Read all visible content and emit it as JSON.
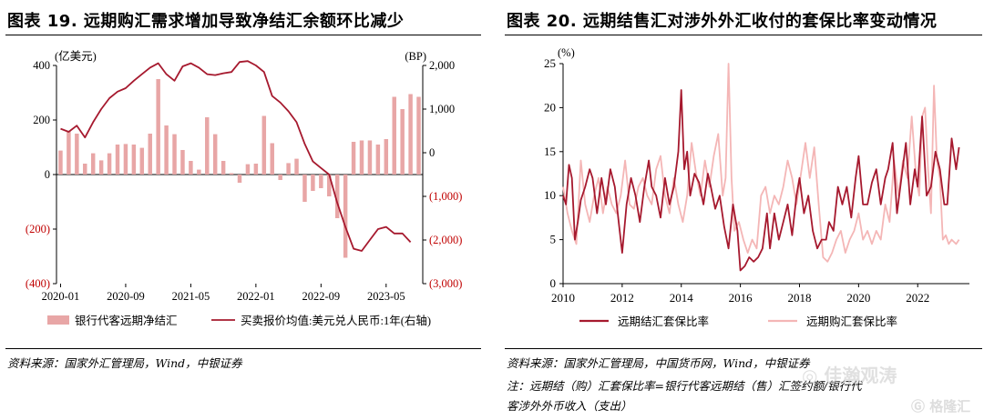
{
  "left": {
    "title": "图表 19. 远期购汇需求增加导致净结汇余额环比减少",
    "source": "资料来源：国家外汇管理局，Wind，中银证券",
    "chart_data": {
      "type": "bar+line",
      "ylabel_left": "(亿美元)",
      "ylabel_right": "(BP)",
      "ylim_left": [
        -400,
        400
      ],
      "ylim_right": [
        -3000,
        2000
      ],
      "yticks_left": [
        "(400)",
        "(200)",
        "0",
        "200",
        "400"
      ],
      "yticks_left_values": [
        -400,
        -200,
        0,
        200,
        400
      ],
      "yticks_right": [
        "(3,000)",
        "(2,000)",
        "(1,000)",
        "0",
        "1,000",
        "2,000"
      ],
      "yticks_right_values": [
        -3000,
        -2000,
        -1000,
        0,
        1000,
        2000
      ],
      "xticks": [
        "2020-01",
        "2020-09",
        "2021-05",
        "2022-01",
        "2022-09",
        "2023-05"
      ],
      "xticks_index": [
        0,
        8,
        16,
        24,
        32,
        40
      ],
      "series": [
        {
          "name": "银行代客远期净结汇",
          "type": "bar",
          "axis": "left",
          "color": "#e8a6a6",
          "values": [
            88,
            160,
            150,
            40,
            78,
            52,
            78,
            110,
            112,
            110,
            98,
            150,
            350,
            180,
            148,
            90,
            50,
            18,
            210,
            148,
            50,
            5,
            -30,
            38,
            40,
            215,
            115,
            -20,
            42,
            58,
            -100,
            -60,
            -50,
            -80,
            -160,
            -305,
            120,
            125,
            125,
            110,
            130,
            285,
            240,
            295,
            285
          ]
        },
        {
          "name": "买卖报价均值:美元兑人民币:1年(右轴)",
          "type": "line",
          "axis": "right",
          "color": "#a6192e",
          "values": [
            550,
            480,
            620,
            350,
            700,
            1000,
            1250,
            1400,
            1480,
            1650,
            1800,
            1950,
            2050,
            1800,
            1650,
            1980,
            2050,
            1950,
            1800,
            1780,
            1820,
            1850,
            2080,
            2100,
            2000,
            1850,
            1300,
            1150,
            950,
            700,
            200,
            -200,
            -350,
            -500,
            -1150,
            -1700,
            -2200,
            -2250,
            -2000,
            -1750,
            -1700,
            -1850,
            -1850,
            -2050
          ]
        }
      ]
    }
  },
  "right": {
    "title": "图表 20. 远期结售汇对涉外外汇收付的套保比率变动情况",
    "source": "资料来源：国家外汇管理局，中国货币网，Wind，中银证券",
    "note": "注：远期结（购）汇套保比率=银行代客远期结（售）汇签约额/银行代客涉外外币收入（支出）",
    "chart_data": {
      "type": "line",
      "ylabel": "(%)",
      "ylim": [
        0,
        25
      ],
      "yticks": [
        "0",
        "5",
        "10",
        "15",
        "20",
        "25"
      ],
      "yticks_values": [
        0,
        5,
        10,
        15,
        20,
        25
      ],
      "xlim": [
        2010,
        2023.75
      ],
      "xticks": [
        "2010",
        "2012",
        "2014",
        "2016",
        "2018",
        "2020",
        "2022"
      ],
      "xticks_values": [
        2010,
        2012,
        2014,
        2016,
        2018,
        2020,
        2022
      ],
      "series": [
        {
          "name": "远期结汇套保比率",
          "color": "#a6192e",
          "x": [
            2010.0,
            2010.1,
            2010.2,
            2010.3,
            2010.4,
            2010.5,
            2010.6,
            2010.75,
            2010.9,
            2011.0,
            2011.15,
            2011.3,
            2011.45,
            2011.6,
            2011.75,
            2011.9,
            2012.0,
            2012.15,
            2012.3,
            2012.45,
            2012.6,
            2012.75,
            2012.9,
            2013.0,
            2013.15,
            2013.3,
            2013.45,
            2013.6,
            2013.75,
            2013.9,
            2014.0,
            2014.1,
            2014.2,
            2014.3,
            2014.45,
            2014.6,
            2014.75,
            2014.9,
            2015.0,
            2015.15,
            2015.3,
            2015.45,
            2015.6,
            2015.75,
            2015.9,
            2016.0,
            2016.15,
            2016.3,
            2016.45,
            2016.6,
            2016.75,
            2016.9,
            2017.0,
            2017.15,
            2017.3,
            2017.45,
            2017.6,
            2017.75,
            2017.9,
            2018.0,
            2018.15,
            2018.3,
            2018.45,
            2018.6,
            2018.75,
            2018.9,
            2019.0,
            2019.15,
            2019.3,
            2019.45,
            2019.6,
            2019.75,
            2019.9,
            2020.0,
            2020.15,
            2020.3,
            2020.45,
            2020.6,
            2020.75,
            2020.9,
            2021.0,
            2021.15,
            2021.3,
            2021.45,
            2021.6,
            2021.75,
            2021.9,
            2022.0,
            2022.15,
            2022.3,
            2022.45,
            2022.6,
            2022.75,
            2022.9,
            2023.0,
            2023.15,
            2023.3,
            2023.4
          ],
          "y": [
            10,
            9,
            13.5,
            12,
            5,
            7,
            9.5,
            11,
            13,
            12,
            8,
            12,
            9,
            13,
            11,
            6.5,
            3.5,
            9,
            12,
            10,
            7,
            11,
            14,
            11,
            10,
            7.5,
            12,
            9,
            11,
            15,
            22,
            13,
            15,
            10,
            12.5,
            11.5,
            9,
            12.5,
            11,
            8.5,
            10,
            6.5,
            4,
            9,
            6,
            1.5,
            2,
            3,
            2.5,
            3,
            4,
            8,
            4,
            8,
            5,
            7,
            9,
            5.5,
            10,
            12,
            8,
            10,
            6,
            4,
            5,
            5,
            7,
            6,
            11,
            9,
            11,
            7.5,
            12,
            14.5,
            9,
            9,
            11.5,
            13,
            9,
            12,
            13,
            16,
            8,
            12,
            16,
            9,
            13,
            11,
            19,
            10,
            11,
            15,
            13,
            9,
            9,
            16.5,
            13,
            15.5
          ]
        },
        {
          "name": "远期购汇套保比率",
          "color": "#f4b6b6",
          "x": [
            2010.0,
            2010.15,
            2010.3,
            2010.45,
            2010.6,
            2010.75,
            2010.9,
            2011.05,
            2011.2,
            2011.35,
            2011.5,
            2011.65,
            2011.8,
            2011.95,
            2012.1,
            2012.25,
            2012.4,
            2012.55,
            2012.7,
            2012.85,
            2013.0,
            2013.15,
            2013.3,
            2013.45,
            2013.6,
            2013.75,
            2013.9,
            2014.05,
            2014.2,
            2014.35,
            2014.5,
            2014.65,
            2014.8,
            2014.95,
            2015.1,
            2015.25,
            2015.4,
            2015.5,
            2015.6,
            2015.7,
            2015.8,
            2015.95,
            2016.1,
            2016.25,
            2016.4,
            2016.55,
            2016.7,
            2016.85,
            2017.0,
            2017.15,
            2017.3,
            2017.45,
            2017.6,
            2017.75,
            2017.9,
            2018.05,
            2018.2,
            2018.35,
            2018.5,
            2018.65,
            2018.8,
            2018.95,
            2019.1,
            2019.25,
            2019.4,
            2019.55,
            2019.7,
            2019.85,
            2020.0,
            2020.15,
            2020.3,
            2020.45,
            2020.6,
            2020.75,
            2020.9,
            2021.05,
            2021.2,
            2021.35,
            2021.5,
            2021.65,
            2021.8,
            2021.95,
            2022.05,
            2022.15,
            2022.25,
            2022.35,
            2022.45,
            2022.55,
            2022.65,
            2022.75,
            2022.85,
            2022.95,
            2023.05,
            2023.15,
            2023.3,
            2023.4
          ],
          "y": [
            11,
            8,
            6,
            4.5,
            14,
            9,
            7,
            10,
            12,
            8,
            11,
            9,
            8,
            10,
            14,
            9,
            8.5,
            11,
            12,
            10,
            9,
            13,
            14.5,
            10,
            8,
            12,
            9,
            7,
            10,
            16,
            12.5,
            10,
            14,
            11,
            14.5,
            17,
            10,
            12,
            25,
            12,
            6,
            7,
            5,
            3.5,
            5,
            4,
            10,
            11,
            8,
            10,
            9,
            11,
            14,
            12,
            9,
            12.5,
            16,
            12,
            15.5,
            9,
            3,
            2.5,
            3.5,
            5,
            6,
            3.5,
            5,
            6,
            8,
            5,
            6,
            4.5,
            6,
            5,
            9,
            7,
            14,
            10,
            14,
            12,
            19,
            12,
            10,
            19,
            20,
            13,
            8,
            22.5,
            14,
            12,
            5,
            5.5,
            4.5,
            5,
            4.5,
            5
          ]
        }
      ]
    }
  },
  "watermark": {
    "wechat": "佳瀚观涛",
    "brand": "格隆汇"
  }
}
